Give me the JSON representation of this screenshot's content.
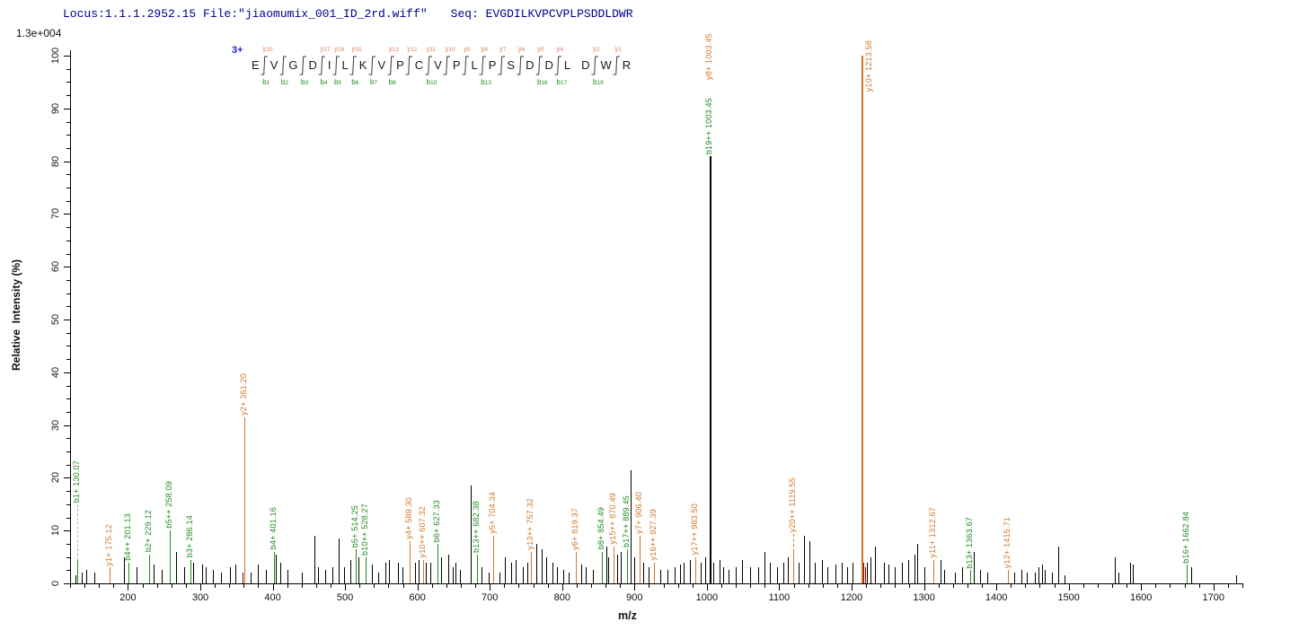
{
  "header": {
    "locus_file": "Locus:1.1.1.2952.15 File:\"jiaomumix_001_ID_2rd.wiff\"",
    "seq": "Seq: EVGDILKVPCVPLPSDDLDWR"
  },
  "colors": {
    "b_ion": "#1f8b1f",
    "y_ion": "#d2772a",
    "unmatched": "#000000",
    "minor_matched": "#8b0000",
    "header_text": "#00008b",
    "charge_label": "#2323c8",
    "ladder_y_label": "#dd8060",
    "ladder_b_label": "#1f8b1f",
    "pointer_gray": "#b3b3b3"
  },
  "sequence_ladder": {
    "charge": "3+",
    "residues": [
      "E",
      "V",
      "G",
      "D",
      "I",
      "L",
      "K",
      "V",
      "P",
      "C",
      "V",
      "P",
      "L",
      "P",
      "S",
      "D",
      "D",
      "L",
      "D",
      "W",
      "R"
    ],
    "boundaries": [
      {
        "after": 1,
        "y": "y20",
        "b": "b1"
      },
      {
        "after": 2,
        "b": "b2"
      },
      {
        "after": 3,
        "b": "b3"
      },
      {
        "after": 4,
        "y": "y17",
        "b": "b4"
      },
      {
        "after": 5,
        "y": "y16",
        "b": "b5"
      },
      {
        "after": 6,
        "y": "y15",
        "b": "b6"
      },
      {
        "after": 7,
        "b": "b7"
      },
      {
        "after": 8,
        "y": "y13",
        "b": "b8"
      },
      {
        "after": 9,
        "y": "y12"
      },
      {
        "after": 10,
        "y": "y11",
        "b": "b10"
      },
      {
        "after": 11,
        "y": "y10"
      },
      {
        "after": 12,
        "y": "y9"
      },
      {
        "after": 13,
        "y": "y8",
        "b": "b13"
      },
      {
        "after": 14,
        "y": "y7"
      },
      {
        "after": 15,
        "y": "y6"
      },
      {
        "after": 16,
        "y": "y5",
        "b": "b16"
      },
      {
        "after": 17,
        "y": "y4",
        "b": "b17"
      },
      {
        "after": 19,
        "y": "y2",
        "b": "b19"
      },
      {
        "after": 20,
        "y": "y1"
      }
    ]
  },
  "chart_data": {
    "type": "bar",
    "kind": "ms2-peptide-fragmentation-spectrum",
    "title": "",
    "xlabel": "m/z",
    "ylabel": "Relative  Intensity (%)",
    "xlim": [
      120,
      1740
    ],
    "ylim": [
      0,
      100
    ],
    "x_major_tick_step": 100,
    "x_minor_tick_step": 20,
    "x_major_tick_range": [
      200,
      1700
    ],
    "y_major_tick_step": 10,
    "y_minor_tick_step": 2.5,
    "base_peak_intensity_label": "1.3e+004",
    "annotated_peaks": [
      {
        "mz": 130.07,
        "intensity": 4.5,
        "peak_color": "b",
        "labels": [
          {
            "text": "b1+ 130.07",
            "series": "b"
          }
        ],
        "pointer": {
          "len": 62,
          "color": "gray",
          "dashed": true
        }
      },
      {
        "mz": 175.12,
        "intensity": 3,
        "peak_color": "y",
        "labels": [
          {
            "text": "y1+ 175.12",
            "series": "y"
          }
        ]
      },
      {
        "mz": 201.13,
        "intensity": 4,
        "peak_color": "b",
        "labels": [
          {
            "text": "b4++ 201.13",
            "series": "b"
          }
        ]
      },
      {
        "mz": 229.12,
        "intensity": 5.5,
        "peak_color": "b",
        "labels": [
          {
            "text": "b2+ 229.12",
            "series": "b"
          }
        ]
      },
      {
        "mz": 258.09,
        "intensity": 10,
        "peak_color": "b",
        "labels": [
          {
            "text": "b5++ 258.09",
            "series": "b"
          }
        ]
      },
      {
        "mz": 286.14,
        "intensity": 4.5,
        "peak_color": "b",
        "labels": [
          {
            "text": "b3+ 286.14",
            "series": "b"
          }
        ]
      },
      {
        "mz": 361.2,
        "intensity": 31.5,
        "peak_color": "y",
        "labels": [
          {
            "text": "y2+ 361.20",
            "series": "y"
          }
        ]
      },
      {
        "mz": 401.16,
        "intensity": 6,
        "peak_color": "b",
        "labels": [
          {
            "text": "b4+ 401.16",
            "series": "b"
          }
        ]
      },
      {
        "mz": 514.25,
        "intensity": 6.5,
        "peak_color": "b",
        "labels": [
          {
            "text": "b5+ 514.25",
            "series": "b"
          }
        ]
      },
      {
        "mz": 528.27,
        "intensity": 5,
        "peak_color": "b",
        "labels": [
          {
            "text": "b10++ 528.27",
            "series": "b"
          }
        ]
      },
      {
        "mz": 589.3,
        "intensity": 8,
        "peak_color": "y",
        "labels": [
          {
            "text": "y4+ 589.30",
            "series": "y"
          }
        ]
      },
      {
        "mz": 607.32,
        "intensity": 4.5,
        "peak_color": "y",
        "labels": [
          {
            "text": "y10++ 607.32",
            "series": "y"
          }
        ]
      },
      {
        "mz": 627.33,
        "intensity": 7.5,
        "peak_color": "b",
        "labels": [
          {
            "text": "b6+ 627.33",
            "series": "b"
          }
        ]
      },
      {
        "mz": 682.38,
        "intensity": 5.5,
        "peak_color": "b",
        "labels": [
          {
            "text": "b13++ 682.38",
            "series": "b"
          }
        ]
      },
      {
        "mz": 704.34,
        "intensity": 9,
        "peak_color": "y",
        "labels": [
          {
            "text": "y5+ 704.34",
            "series": "y"
          }
        ]
      },
      {
        "mz": 757.32,
        "intensity": 6,
        "peak_color": "y",
        "labels": [
          {
            "text": "y13++ 757.32",
            "series": "y"
          }
        ]
      },
      {
        "mz": 819.37,
        "intensity": 6,
        "peak_color": "y",
        "labels": [
          {
            "text": "y6+ 819.37",
            "series": "y"
          }
        ]
      },
      {
        "mz": 854.49,
        "intensity": 6,
        "peak_color": "b",
        "labels": [
          {
            "text": "b8+ 854.49",
            "series": "b"
          }
        ]
      },
      {
        "mz": 870.49,
        "intensity": 7,
        "peak_color": "y",
        "labels": [
          {
            "text": "y15++ 870.49",
            "series": "y"
          }
        ]
      },
      {
        "mz": 889.45,
        "intensity": 6.5,
        "peak_color": "b",
        "labels": [
          {
            "text": "b17++ 889.45",
            "series": "b"
          }
        ]
      },
      {
        "mz": 906.4,
        "intensity": 9,
        "peak_color": "y",
        "labels": [
          {
            "text": "y7+ 906.40",
            "series": "y"
          }
        ]
      },
      {
        "mz": 927.39,
        "intensity": 4,
        "peak_color": "y",
        "labels": [
          {
            "text": "y16++ 927.39",
            "series": "y"
          }
        ]
      },
      {
        "mz": 983.5,
        "intensity": 5,
        "peak_color": "y",
        "labels": [
          {
            "text": "y17++ 983.50",
            "series": "y"
          }
        ]
      },
      {
        "mz": 1003.45,
        "intensity": 81,
        "peak_color": "black",
        "labels": [
          {
            "text": "b19++ 1003.45",
            "series": "b"
          },
          {
            "text": "y8+ 1003.45",
            "series": "y"
          }
        ]
      },
      {
        "mz": 1119.55,
        "intensity": 6,
        "peak_color": "y",
        "labels": [
          {
            "text": "y20++ 1119.55",
            "series": "y"
          }
        ],
        "pointer": {
          "len": 20,
          "color": "y",
          "dashed": true
        }
      },
      {
        "mz": 1213.58,
        "intensity": 100,
        "peak_color": "y",
        "labels": [
          {
            "text": "y10+ 1213.58",
            "series": "y",
            "beside": true
          }
        ]
      },
      {
        "mz": 1312.67,
        "intensity": 4.5,
        "peak_color": "y",
        "labels": [
          {
            "text": "y11+ 1312.67",
            "series": "y"
          }
        ]
      },
      {
        "mz": 1363.67,
        "intensity": 2.5,
        "peak_color": "b",
        "labels": [
          {
            "text": "b13+ 1363.67",
            "series": "b"
          }
        ]
      },
      {
        "mz": 1415.71,
        "intensity": 2.5,
        "peak_color": "y",
        "labels": [
          {
            "text": "y12+ 1415.71",
            "series": "y"
          }
        ]
      },
      {
        "mz": 1662.84,
        "intensity": 3.5,
        "peak_color": "b",
        "labels": [
          {
            "text": "b16+ 1662.84",
            "series": "b"
          }
        ]
      }
    ],
    "minor_matched_peaks": [
      [
        358,
        2
      ],
      [
        1215.8,
        4
      ],
      [
        1218.8,
        3
      ]
    ],
    "unmatched_peaks": [
      [
        127,
        1.5
      ],
      [
        136,
        2
      ],
      [
        142,
        2.5
      ],
      [
        154,
        2
      ],
      [
        194,
        5
      ],
      [
        212,
        3
      ],
      [
        236,
        3.5
      ],
      [
        246,
        2.5
      ],
      [
        266,
        6
      ],
      [
        277,
        3
      ],
      [
        290,
        4
      ],
      [
        302,
        3.5
      ],
      [
        308,
        3
      ],
      [
        317,
        2.5
      ],
      [
        329,
        2
      ],
      [
        341,
        3
      ],
      [
        348,
        3.5
      ],
      [
        370,
        2
      ],
      [
        380,
        3.5
      ],
      [
        390,
        2.5
      ],
      [
        404,
        5.5
      ],
      [
        411,
        4
      ],
      [
        420,
        2.5
      ],
      [
        440,
        2
      ],
      [
        457,
        9
      ],
      [
        462,
        3
      ],
      [
        472,
        2.5
      ],
      [
        482,
        3
      ],
      [
        491,
        8.5
      ],
      [
        498,
        3
      ],
      [
        507,
        4.5
      ],
      [
        519,
        5
      ],
      [
        537,
        3.5
      ],
      [
        546,
        2
      ],
      [
        556,
        4
      ],
      [
        561,
        4.5
      ],
      [
        573,
        4
      ],
      [
        579,
        3
      ],
      [
        597,
        4
      ],
      [
        601,
        4.5
      ],
      [
        612,
        4
      ],
      [
        618,
        4
      ],
      [
        633,
        5
      ],
      [
        642,
        5.5
      ],
      [
        649,
        3
      ],
      [
        653,
        4
      ],
      [
        659,
        2.5
      ],
      [
        673,
        18.5
      ],
      [
        688,
        3
      ],
      [
        698,
        2
      ],
      [
        713,
        2
      ],
      [
        721,
        5
      ],
      [
        730,
        4
      ],
      [
        736,
        4.5
      ],
      [
        746,
        3
      ],
      [
        752,
        4
      ],
      [
        764,
        7.5
      ],
      [
        772,
        6.5
      ],
      [
        778,
        5
      ],
      [
        787,
        4
      ],
      [
        793,
        3
      ],
      [
        802,
        2.5
      ],
      [
        809,
        2
      ],
      [
        826,
        3.5
      ],
      [
        833,
        3
      ],
      [
        842,
        2.5
      ],
      [
        861,
        7
      ],
      [
        864,
        5
      ],
      [
        876,
        5.5
      ],
      [
        881,
        6
      ],
      [
        894,
        21.5
      ],
      [
        899,
        5
      ],
      [
        912,
        4
      ],
      [
        919,
        3
      ],
      [
        936,
        2.5
      ],
      [
        946,
        2.5
      ],
      [
        956,
        3
      ],
      [
        963,
        3.5
      ],
      [
        968,
        4
      ],
      [
        976,
        4.5
      ],
      [
        991,
        4
      ],
      [
        997,
        5
      ],
      [
        1009,
        4
      ],
      [
        1017,
        4.5
      ],
      [
        1023,
        3
      ],
      [
        1030,
        2.5
      ],
      [
        1040,
        3
      ],
      [
        1049,
        4.5
      ],
      [
        1060,
        3
      ],
      [
        1071,
        3
      ],
      [
        1080,
        6
      ],
      [
        1087,
        4
      ],
      [
        1097,
        3
      ],
      [
        1105,
        4
      ],
      [
        1112,
        5
      ],
      [
        1127,
        4
      ],
      [
        1134,
        9
      ],
      [
        1142,
        8
      ],
      [
        1149,
        4
      ],
      [
        1159,
        4.5
      ],
      [
        1167,
        3
      ],
      [
        1177,
        3.5
      ],
      [
        1186,
        4
      ],
      [
        1194,
        3
      ],
      [
        1201,
        4
      ],
      [
        1221,
        4
      ],
      [
        1226,
        5
      ],
      [
        1232,
        7
      ],
      [
        1245,
        4
      ],
      [
        1251,
        3.5
      ],
      [
        1260,
        3
      ],
      [
        1270,
        4
      ],
      [
        1278,
        4.5
      ],
      [
        1287,
        5.5
      ],
      [
        1291,
        7.5
      ],
      [
        1301,
        3
      ],
      [
        1323,
        4.5
      ],
      [
        1328,
        2.5
      ],
      [
        1343,
        2
      ],
      [
        1353,
        3
      ],
      [
        1369,
        6
      ],
      [
        1378,
        2.5
      ],
      [
        1388,
        2
      ],
      [
        1425,
        2
      ],
      [
        1434,
        2.5
      ],
      [
        1442,
        2
      ],
      [
        1453,
        2
      ],
      [
        1458,
        3
      ],
      [
        1463,
        3.5
      ],
      [
        1467,
        2.5
      ],
      [
        1477,
        2
      ],
      [
        1486,
        7
      ],
      [
        1494,
        1.5
      ],
      [
        1564,
        5
      ],
      [
        1569,
        2
      ],
      [
        1585,
        4
      ],
      [
        1589,
        3.5
      ],
      [
        1669,
        3
      ],
      [
        1731,
        1.5
      ]
    ]
  }
}
